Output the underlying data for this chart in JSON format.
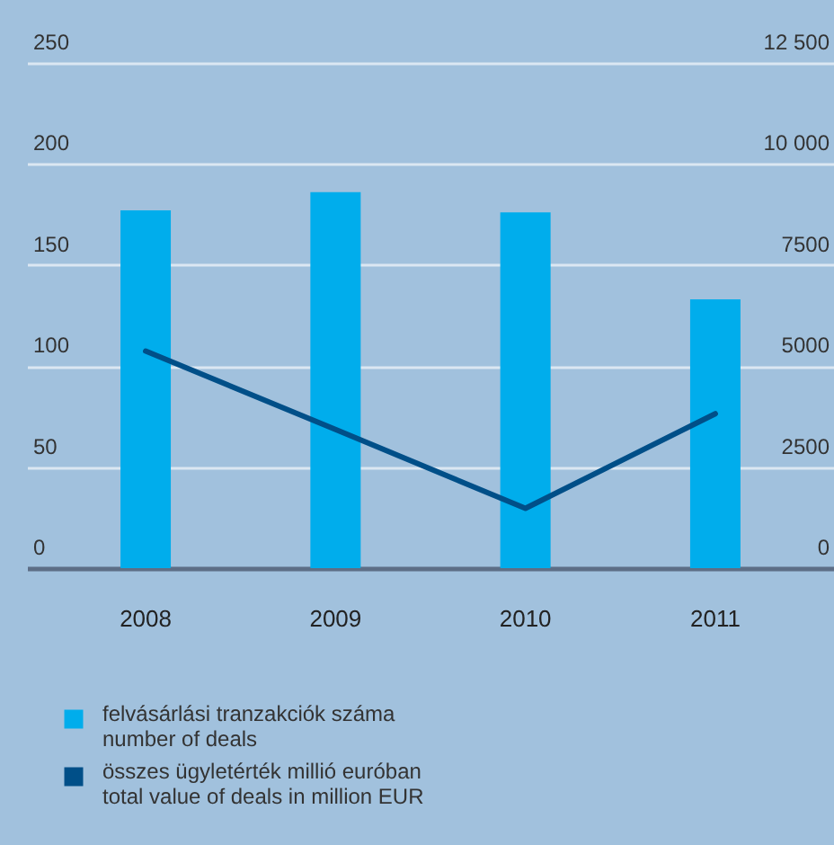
{
  "chart_data": {
    "type": "bar",
    "categories": [
      "2008",
      "2009",
      "2010",
      "2011"
    ],
    "series": [
      {
        "name": "felvásárlási tranzakciók száma\nnumber of deals",
        "color": "#00adec",
        "values": [
          177,
          186,
          176,
          133
        ]
      },
      {
        "name": "összes ügyletérték millió euróban\ntotal value of deals in million EUR",
        "color": "#004f88",
        "type": "line",
        "axis": "y2",
        "values": [
          5370,
          3430,
          1480,
          3820
        ]
      }
    ],
    "ylim": [
      0,
      250
    ],
    "yticks": [
      0,
      50,
      100,
      150,
      200,
      250
    ],
    "y2lim": [
      0,
      12500
    ],
    "y2ticks": [
      {
        "value": 0,
        "label": "0"
      },
      {
        "value": 2500,
        "label": "2500"
      },
      {
        "value": 5000,
        "label": "5000"
      },
      {
        "value": 7500,
        "label": "7500"
      },
      {
        "value": 10000,
        "label": "10 000"
      },
      {
        "value": 12500,
        "label": "12 500"
      }
    ],
    "grid": "y",
    "legend": "bottom left"
  }
}
